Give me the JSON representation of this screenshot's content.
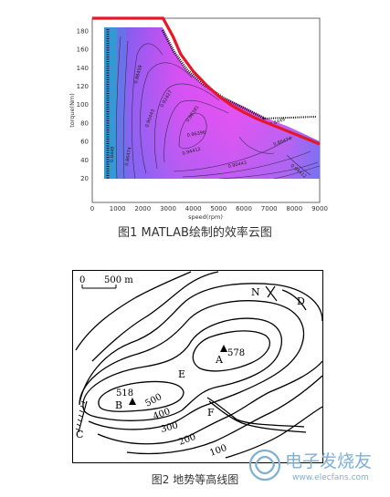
{
  "figure1": {
    "caption": "图1 MATLAB绘制的效率云图",
    "xlabel": "speed(rpm)",
    "ylabel": "torque(Nm)",
    "x_ticks": [
      "0",
      "1000",
      "2000",
      "3000",
      "4000",
      "5000",
      "6000",
      "7000",
      "8000",
      "9000"
    ],
    "y_ticks": [
      "20",
      "40",
      "60",
      "80",
      "100",
      "120",
      "140",
      "160",
      "180"
    ],
    "contour_labels": [
      "0.8449",
      "0.86474",
      "0.88459",
      "0.90443",
      "0.92427",
      "0.94412",
      "0.96396",
      "0.98381",
      "0.8449",
      "0.86474",
      "0.90443",
      "0.94412"
    ]
  },
  "chart_data": {
    "type": "heatmap",
    "title": "",
    "xlabel": "speed(rpm)",
    "ylabel": "torque(Nm)",
    "xlim": [
      0,
      9000
    ],
    "ylim": [
      0,
      180
    ],
    "series": [
      {
        "name": "",
        "points": [
          [
            0,
            180
          ],
          [
            500,
            180
          ],
          [
            1000,
            180
          ],
          [
            1500,
            180
          ],
          [
            2000,
            180
          ],
          [
            2500,
            180
          ],
          [
            2800,
            180
          ],
          [
            3200,
            162
          ],
          [
            3500,
            145
          ],
          [
            4000,
            128
          ],
          [
            4500,
            115
          ],
          [
            5000,
            104
          ],
          [
            5500,
            95
          ],
          [
            6000,
            88
          ],
          [
            6500,
            82
          ],
          [
            7000,
            77
          ],
          [
            7500,
            72
          ],
          [
            8000,
            67
          ],
          [
            8500,
            62
          ],
          [
            9000,
            57
          ]
        ]
      }
    ]
  },
  "figure2": {
    "caption": "图2 地势等高线图",
    "scale_zero": "0",
    "scale_text": "500 m",
    "north": "N",
    "points": {
      "A": "A",
      "B": "B",
      "C": "C",
      "D": "D",
      "E": "E",
      "F": "F"
    },
    "peak_A": "578",
    "peak_B": "518",
    "contour_labels": [
      "500",
      "400",
      "300",
      "200",
      "100"
    ]
  },
  "watermark": {
    "text": "电子发烧友",
    "url": "www.elecfans.com"
  }
}
